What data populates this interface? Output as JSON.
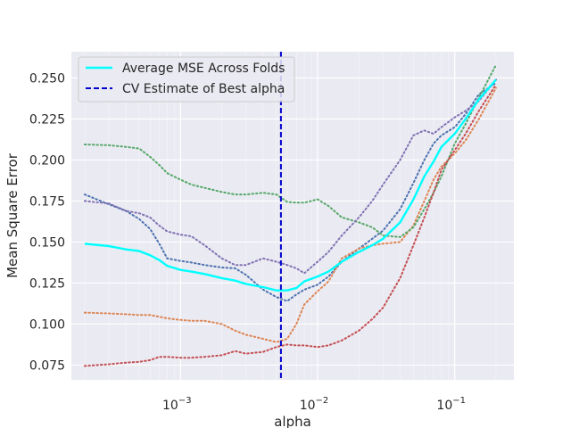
{
  "chart_data": {
    "type": "line",
    "title": "",
    "xlabel": "alpha",
    "ylabel": "Mean Square Error",
    "xscale": "log",
    "xlim": [
      0.00016,
      0.27
    ],
    "ylim": [
      0.066,
      0.266
    ],
    "grid": true,
    "legend_position": "top-left",
    "x_ticks": [
      {
        "value": 0.001,
        "base": "10",
        "exp": "−3"
      },
      {
        "value": 0.01,
        "base": "10",
        "exp": "−2"
      },
      {
        "value": 0.1,
        "base": "10",
        "exp": "−1"
      }
    ],
    "y_ticks": [
      0.075,
      0.1,
      0.125,
      0.15,
      0.175,
      0.2,
      0.225,
      0.25
    ],
    "y_tick_labels": [
      "0.075",
      "0.100",
      "0.125",
      "0.150",
      "0.175",
      "0.200",
      "0.225",
      "0.250"
    ],
    "best_alpha": {
      "x": 0.0054,
      "name": "CV Estimate of Best alpha",
      "color": "#0000cc"
    },
    "series": [
      {
        "name": "Average MSE Across Folds",
        "color": "#00ffff",
        "style": "solid",
        "points": [
          [
            0.0002,
            0.149
          ],
          [
            0.0003,
            0.1475
          ],
          [
            0.0004,
            0.1455
          ],
          [
            0.0005,
            0.1445
          ],
          [
            0.0006,
            0.142
          ],
          [
            0.0007,
            0.139
          ],
          [
            0.0008,
            0.1355
          ],
          [
            0.001,
            0.133
          ],
          [
            0.0012,
            0.132
          ],
          [
            0.0015,
            0.1305
          ],
          [
            0.002,
            0.128
          ],
          [
            0.0025,
            0.1265
          ],
          [
            0.003,
            0.1245
          ],
          [
            0.004,
            0.1225
          ],
          [
            0.005,
            0.1205
          ],
          [
            0.006,
            0.1205
          ],
          [
            0.007,
            0.122
          ],
          [
            0.008,
            0.126
          ],
          [
            0.01,
            0.129
          ],
          [
            0.012,
            0.132
          ],
          [
            0.015,
            0.138
          ],
          [
            0.02,
            0.144
          ],
          [
            0.025,
            0.148
          ],
          [
            0.03,
            0.152
          ],
          [
            0.04,
            0.162
          ],
          [
            0.05,
            0.176
          ],
          [
            0.06,
            0.19
          ],
          [
            0.07,
            0.199
          ],
          [
            0.08,
            0.208
          ],
          [
            0.1,
            0.216
          ],
          [
            0.12,
            0.225
          ],
          [
            0.15,
            0.237
          ],
          [
            0.2,
            0.249
          ]
        ]
      },
      {
        "name": "",
        "color": "#4c72b0",
        "style": "dotted",
        "points": [
          [
            0.0002,
            0.179
          ],
          [
            0.0003,
            0.173
          ],
          [
            0.0004,
            0.169
          ],
          [
            0.0005,
            0.164
          ],
          [
            0.0006,
            0.158
          ],
          [
            0.0007,
            0.149
          ],
          [
            0.0008,
            0.14
          ],
          [
            0.001,
            0.1385
          ],
          [
            0.0012,
            0.1375
          ],
          [
            0.0015,
            0.136
          ],
          [
            0.002,
            0.1345
          ],
          [
            0.0025,
            0.134
          ],
          [
            0.003,
            0.13
          ],
          [
            0.004,
            0.121
          ],
          [
            0.005,
            0.1165
          ],
          [
            0.006,
            0.114
          ],
          [
            0.007,
            0.118
          ],
          [
            0.008,
            0.121
          ],
          [
            0.01,
            0.124
          ],
          [
            0.012,
            0.129
          ],
          [
            0.015,
            0.138
          ],
          [
            0.02,
            0.146
          ],
          [
            0.025,
            0.152
          ],
          [
            0.03,
            0.157
          ],
          [
            0.04,
            0.17
          ],
          [
            0.05,
            0.186
          ],
          [
            0.06,
            0.2
          ],
          [
            0.07,
            0.21
          ],
          [
            0.08,
            0.215
          ],
          [
            0.1,
            0.22
          ],
          [
            0.12,
            0.228
          ],
          [
            0.15,
            0.24
          ],
          [
            0.2,
            0.247
          ]
        ]
      },
      {
        "name": "",
        "color": "#dd8452",
        "style": "dotted",
        "points": [
          [
            0.0002,
            0.107
          ],
          [
            0.0003,
            0.1065
          ],
          [
            0.0004,
            0.106
          ],
          [
            0.0005,
            0.1055
          ],
          [
            0.0006,
            0.1055
          ],
          [
            0.0007,
            0.1045
          ],
          [
            0.0008,
            0.1035
          ],
          [
            0.001,
            0.1025
          ],
          [
            0.0012,
            0.102
          ],
          [
            0.0015,
            0.102
          ],
          [
            0.002,
            0.1
          ],
          [
            0.0025,
            0.096
          ],
          [
            0.003,
            0.0935
          ],
          [
            0.004,
            0.091
          ],
          [
            0.005,
            0.089
          ],
          [
            0.006,
            0.091
          ],
          [
            0.007,
            0.1
          ],
          [
            0.008,
            0.112
          ],
          [
            0.01,
            0.12
          ],
          [
            0.012,
            0.126
          ],
          [
            0.015,
            0.14
          ],
          [
            0.02,
            0.146
          ],
          [
            0.025,
            0.148
          ],
          [
            0.03,
            0.149
          ],
          [
            0.04,
            0.15
          ],
          [
            0.05,
            0.16
          ],
          [
            0.06,
            0.175
          ],
          [
            0.07,
            0.188
          ],
          [
            0.08,
            0.196
          ],
          [
            0.1,
            0.204
          ],
          [
            0.12,
            0.212
          ],
          [
            0.15,
            0.225
          ],
          [
            0.2,
            0.244
          ]
        ]
      },
      {
        "name": "",
        "color": "#55a868",
        "style": "dotted",
        "points": [
          [
            0.0002,
            0.2095
          ],
          [
            0.0003,
            0.209
          ],
          [
            0.0004,
            0.208
          ],
          [
            0.0005,
            0.207
          ],
          [
            0.0006,
            0.202
          ],
          [
            0.0007,
            0.197
          ],
          [
            0.0008,
            0.192
          ],
          [
            0.001,
            0.188
          ],
          [
            0.0012,
            0.185
          ],
          [
            0.0015,
            0.183
          ],
          [
            0.002,
            0.1805
          ],
          [
            0.0025,
            0.179
          ],
          [
            0.003,
            0.179
          ],
          [
            0.004,
            0.18
          ],
          [
            0.005,
            0.179
          ],
          [
            0.006,
            0.1745
          ],
          [
            0.007,
            0.174
          ],
          [
            0.008,
            0.174
          ],
          [
            0.01,
            0.176
          ],
          [
            0.012,
            0.172
          ],
          [
            0.015,
            0.165
          ],
          [
            0.02,
            0.162
          ],
          [
            0.025,
            0.159
          ],
          [
            0.03,
            0.154
          ],
          [
            0.04,
            0.153
          ],
          [
            0.05,
            0.159
          ],
          [
            0.06,
            0.17
          ],
          [
            0.07,
            0.18
          ],
          [
            0.08,
            0.19
          ],
          [
            0.1,
            0.21
          ],
          [
            0.12,
            0.222
          ],
          [
            0.15,
            0.238
          ],
          [
            0.2,
            0.258
          ]
        ]
      },
      {
        "name": "",
        "color": "#c44e52",
        "style": "dotted",
        "points": [
          [
            0.0002,
            0.0745
          ],
          [
            0.0003,
            0.0755
          ],
          [
            0.0004,
            0.0765
          ],
          [
            0.0005,
            0.077
          ],
          [
            0.0006,
            0.078
          ],
          [
            0.0007,
            0.08
          ],
          [
            0.0008,
            0.08
          ],
          [
            0.001,
            0.0795
          ],
          [
            0.0012,
            0.0795
          ],
          [
            0.0015,
            0.08
          ],
          [
            0.002,
            0.081
          ],
          [
            0.0025,
            0.0835
          ],
          [
            0.003,
            0.082
          ],
          [
            0.004,
            0.083
          ],
          [
            0.005,
            0.086
          ],
          [
            0.006,
            0.0875
          ],
          [
            0.007,
            0.087
          ],
          [
            0.008,
            0.087
          ],
          [
            0.01,
            0.086
          ],
          [
            0.012,
            0.087
          ],
          [
            0.015,
            0.09
          ],
          [
            0.02,
            0.096
          ],
          [
            0.025,
            0.103
          ],
          [
            0.03,
            0.11
          ],
          [
            0.04,
            0.128
          ],
          [
            0.05,
            0.148
          ],
          [
            0.06,
            0.165
          ],
          [
            0.07,
            0.18
          ],
          [
            0.08,
            0.194
          ],
          [
            0.1,
            0.206
          ],
          [
            0.12,
            0.216
          ],
          [
            0.15,
            0.23
          ],
          [
            0.2,
            0.246
          ]
        ]
      },
      {
        "name": "",
        "color": "#8172b3",
        "style": "dotted",
        "points": [
          [
            0.0002,
            0.175
          ],
          [
            0.0003,
            0.1735
          ],
          [
            0.0004,
            0.169
          ],
          [
            0.0005,
            0.1675
          ],
          [
            0.0006,
            0.165
          ],
          [
            0.0007,
            0.16
          ],
          [
            0.0008,
            0.1565
          ],
          [
            0.001,
            0.1545
          ],
          [
            0.0012,
            0.1535
          ],
          [
            0.0015,
            0.148
          ],
          [
            0.002,
            0.14
          ],
          [
            0.0025,
            0.136
          ],
          [
            0.003,
            0.136
          ],
          [
            0.004,
            0.14
          ],
          [
            0.005,
            0.138
          ],
          [
            0.006,
            0.136
          ],
          [
            0.007,
            0.134
          ],
          [
            0.008,
            0.131
          ],
          [
            0.01,
            0.138
          ],
          [
            0.012,
            0.144
          ],
          [
            0.015,
            0.154
          ],
          [
            0.02,
            0.165
          ],
          [
            0.025,
            0.175
          ],
          [
            0.03,
            0.185
          ],
          [
            0.04,
            0.2
          ],
          [
            0.05,
            0.215
          ],
          [
            0.06,
            0.218
          ],
          [
            0.07,
            0.216
          ],
          [
            0.08,
            0.22
          ],
          [
            0.1,
            0.226
          ],
          [
            0.12,
            0.23
          ],
          [
            0.15,
            0.236
          ],
          [
            0.2,
            0.249
          ]
        ]
      }
    ]
  }
}
